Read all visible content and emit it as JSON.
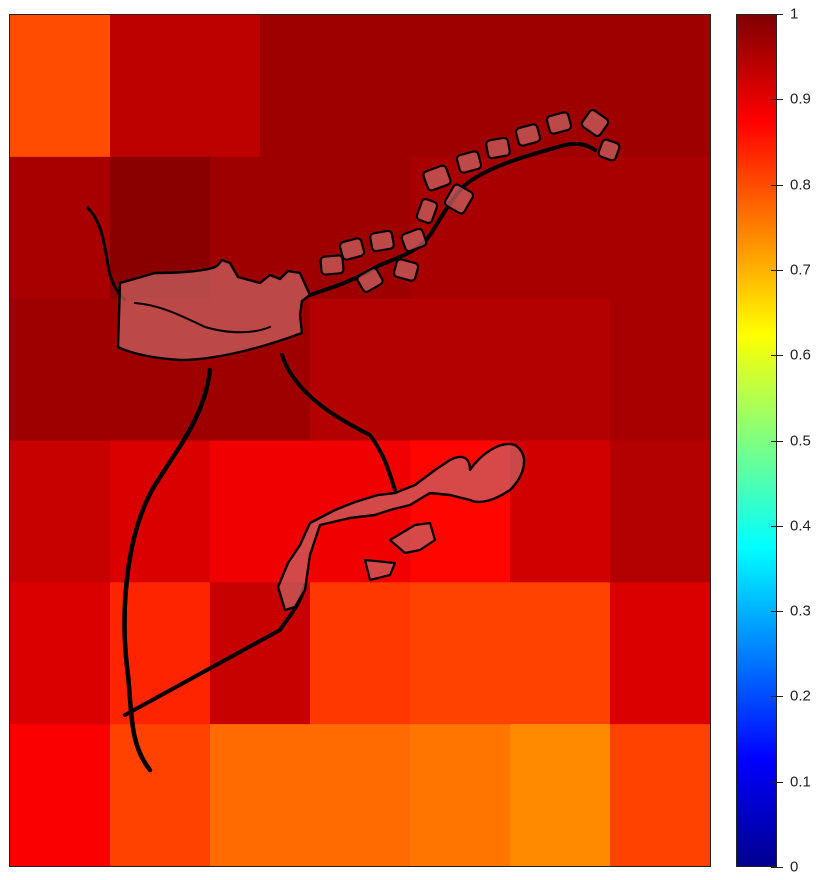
{
  "chart_data": {
    "type": "heatmap",
    "title": "",
    "xlabel": "",
    "ylabel": "",
    "grid": false,
    "colormap": "jet",
    "clim": [
      0,
      1
    ],
    "rows": 6,
    "cols": 14,
    "values": [
      [
        0.8,
        0.8,
        0.94,
        0.94,
        0.94,
        0.97,
        0.97,
        0.97,
        0.97,
        0.97,
        0.97,
        0.97,
        0.97,
        0.97
      ],
      [
        0.96,
        0.96,
        0.99,
        0.99,
        0.97,
        0.97,
        0.97,
        0.97,
        0.96,
        0.96,
        0.96,
        0.96,
        0.96,
        0.96
      ],
      [
        0.97,
        0.97,
        0.97,
        0.97,
        0.97,
        0.97,
        0.95,
        0.95,
        0.95,
        0.95,
        0.95,
        0.95,
        0.96,
        0.96
      ],
      [
        0.93,
        0.93,
        0.91,
        0.91,
        0.89,
        0.89,
        0.89,
        0.89,
        0.87,
        0.87,
        0.92,
        0.92,
        0.95,
        0.95
      ],
      [
        0.91,
        0.91,
        0.84,
        0.84,
        0.93,
        0.93,
        0.82,
        0.82,
        0.81,
        0.81,
        0.81,
        0.81,
        0.91,
        0.91
      ],
      [
        0.88,
        0.88,
        0.81,
        0.81,
        0.77,
        0.77,
        0.77,
        0.77,
        0.76,
        0.76,
        0.74,
        0.74,
        0.81,
        0.81
      ]
    ],
    "colorbar": {
      "ticks": [
        0,
        0.1,
        0.2,
        0.3,
        0.4,
        0.5,
        0.6,
        0.7,
        0.8,
        0.9,
        1
      ],
      "tick_labels": [
        "0",
        "0.1",
        "0.2",
        "0.3",
        "0.4",
        "0.5",
        "0.6",
        "0.7",
        "0.8",
        "0.9",
        "1"
      ]
    },
    "overlay": {
      "fill_color": "#c86464",
      "fill_opacity": 0.72,
      "stroke_color": "#000000"
    }
  }
}
